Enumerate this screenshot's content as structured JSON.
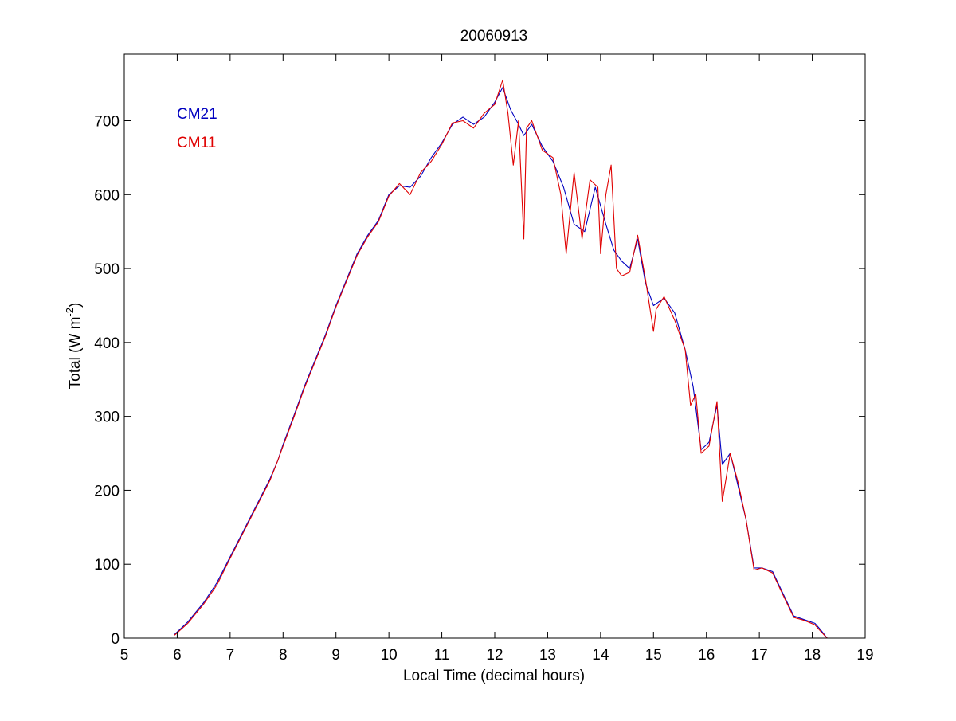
{
  "chart_data": {
    "type": "line",
    "title": "20060913",
    "xlabel": "Local Time (decimal hours)",
    "ylabel": "Total (W m-2)",
    "ylabel_parts": {
      "main": "Total (W m",
      "sup": "-2",
      "close": ")"
    },
    "xlim": [
      5,
      19
    ],
    "ylim": [
      0,
      790
    ],
    "xticks": [
      5,
      6,
      7,
      8,
      9,
      10,
      11,
      12,
      13,
      14,
      15,
      16,
      17,
      18,
      19
    ],
    "yticks": [
      0,
      100,
      200,
      300,
      400,
      500,
      600,
      700
    ],
    "grid": false,
    "legend_placement": "top-left",
    "colors": {
      "CM21": "#0000c0",
      "CM11": "#e00000"
    },
    "series": [
      {
        "name": "CM21",
        "x": [
          5.95,
          6.2,
          6.5,
          6.75,
          7.0,
          7.25,
          7.5,
          7.75,
          7.9,
          8.0,
          8.2,
          8.4,
          8.6,
          8.8,
          9.0,
          9.2,
          9.4,
          9.6,
          9.8,
          10.0,
          10.2,
          10.4,
          10.6,
          10.8,
          11.0,
          11.2,
          11.4,
          11.6,
          11.8,
          12.0,
          12.15,
          12.3,
          12.45,
          12.55,
          12.7,
          12.9,
          13.1,
          13.3,
          13.5,
          13.7,
          13.9,
          14.1,
          14.25,
          14.4,
          14.55,
          14.7,
          14.85,
          15.0,
          15.2,
          15.4,
          15.6,
          15.75,
          15.9,
          16.05,
          16.2,
          16.3,
          16.45,
          16.6,
          16.75,
          16.9,
          17.05,
          17.25,
          17.45,
          17.65,
          17.85,
          18.05,
          18.15,
          18.28
        ],
        "values": [
          5,
          22,
          48,
          75,
          110,
          145,
          180,
          215,
          240,
          262,
          300,
          340,
          375,
          410,
          450,
          485,
          520,
          545,
          565,
          600,
          612,
          610,
          625,
          650,
          670,
          695,
          705,
          695,
          705,
          725,
          745,
          715,
          695,
          680,
          695,
          665,
          645,
          610,
          560,
          550,
          610,
          560,
          525,
          510,
          500,
          540,
          480,
          450,
          460,
          440,
          390,
          340,
          255,
          265,
          315,
          235,
          250,
          205,
          160,
          95,
          95,
          90,
          60,
          30,
          25,
          20,
          12,
          0
        ]
      },
      {
        "name": "CM11",
        "x": [
          5.95,
          6.2,
          6.5,
          6.75,
          7.0,
          7.25,
          7.5,
          7.75,
          7.9,
          8.0,
          8.2,
          8.4,
          8.6,
          8.8,
          9.0,
          9.2,
          9.4,
          9.6,
          9.8,
          10.0,
          10.2,
          10.4,
          10.6,
          10.8,
          11.0,
          11.2,
          11.4,
          11.6,
          11.8,
          12.0,
          12.15,
          12.25,
          12.35,
          12.45,
          12.55,
          12.6,
          12.7,
          12.9,
          13.1,
          13.25,
          13.35,
          13.5,
          13.65,
          13.8,
          13.95,
          14.0,
          14.1,
          14.2,
          14.3,
          14.4,
          14.55,
          14.7,
          14.85,
          15.0,
          15.05,
          15.2,
          15.4,
          15.6,
          15.7,
          15.8,
          15.9,
          16.05,
          16.2,
          16.3,
          16.45,
          16.6,
          16.75,
          16.9,
          17.05,
          17.25,
          17.45,
          17.65,
          17.85,
          18.05,
          18.15,
          18.28
        ],
        "values": [
          4,
          20,
          46,
          72,
          108,
          143,
          178,
          213,
          240,
          260,
          298,
          338,
          373,
          408,
          448,
          483,
          518,
          543,
          563,
          598,
          615,
          600,
          630,
          645,
          668,
          697,
          700,
          690,
          710,
          722,
          755,
          710,
          640,
          700,
          540,
          690,
          700,
          660,
          650,
          600,
          520,
          630,
          540,
          620,
          610,
          520,
          600,
          640,
          500,
          490,
          495,
          545,
          485,
          415,
          445,
          462,
          430,
          390,
          315,
          330,
          250,
          260,
          320,
          185,
          250,
          210,
          160,
          92,
          95,
          88,
          58,
          28,
          24,
          18,
          10,
          0
        ]
      }
    ]
  }
}
